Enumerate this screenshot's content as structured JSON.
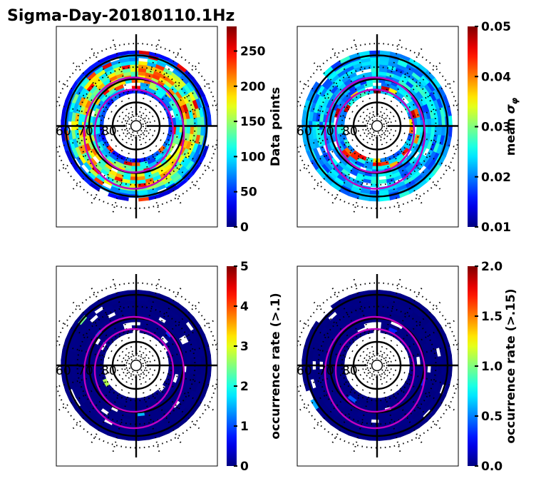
{
  "figure": {
    "title": "Sigma-Day-20180110.1Hz"
  },
  "chart_data": [
    {
      "type": "heatmap",
      "projection": "polar",
      "panel": "top-left",
      "title": "",
      "lat_labels": [
        "60",
        "70",
        "80"
      ],
      "colorbar": {
        "label": "Data points",
        "range": [
          0,
          285
        ],
        "ticks": [
          0,
          50,
          100,
          150,
          200,
          250
        ],
        "tick_labels": [
          "0",
          "50",
          "100",
          "150",
          "200",
          "250"
        ],
        "colormap": "jet"
      },
      "description": "Annular band of bins from ~60 to ~75 deg latitude; highest counts (150-250) in mid band, dawn/dusk sectors; low counts (0-50) at edges",
      "band": {
        "inner_lat": 75,
        "outer_lat": 58,
        "typical_value": 120,
        "max_value": 260
      },
      "oval_boundaries": [
        "poleward",
        "equatorward"
      ]
    },
    {
      "type": "heatmap",
      "projection": "polar",
      "panel": "top-right",
      "lat_labels": [
        "60",
        "70",
        "80"
      ],
      "colorbar": {
        "label": "mean σ_φ",
        "range": [
          0.01,
          0.05
        ],
        "ticks": [
          0.01,
          0.02,
          0.03,
          0.04,
          0.05
        ],
        "tick_labels": [
          "0.01",
          "0.02",
          "0.03",
          "0.04",
          "0.05"
        ],
        "colormap": "jet"
      },
      "description": "Mostly 0.015-0.025 throughout band; elevated values (0.035-0.05) near inner edge of band by the auroral oval",
      "band": {
        "inner_lat": 75,
        "outer_lat": 58,
        "typical_value": 0.021,
        "max_value": 0.05
      }
    },
    {
      "type": "heatmap",
      "projection": "polar",
      "panel": "bottom-left",
      "lat_labels": [
        "60",
        "70",
        "80"
      ],
      "colorbar": {
        "label": "occurrence rate (>.1)",
        "range": [
          0,
          5
        ],
        "ticks": [
          0,
          1,
          2,
          3,
          4,
          5
        ],
        "tick_labels": [
          "0",
          "1",
          "2",
          "3",
          "4",
          "5"
        ],
        "colormap": "jet"
      },
      "description": "Nearly all bins ~0; a few bins ~0.5-1 near noon and dusk; one bin ~2.5 on the dawn side",
      "band": {
        "inner_lat": 75,
        "outer_lat": 58,
        "typical_value": 0.05,
        "max_value": 2.8
      }
    },
    {
      "type": "heatmap",
      "projection": "polar",
      "panel": "bottom-right",
      "lat_labels": [
        "60",
        "70",
        "80"
      ],
      "colorbar": {
        "label": "occurrence rate (>.15)",
        "range": [
          0.0,
          2.0
        ],
        "ticks": [
          0.0,
          0.5,
          1.0,
          1.5,
          2.0
        ],
        "tick_labels": [
          "0.0",
          "0.5",
          "1.0",
          "1.5",
          "2.0"
        ],
        "colormap": "jet"
      },
      "description": "Nearly all bins ~0; a couple of bins ~0.3-0.7 on the dusk/pre-midnight side",
      "band": {
        "inner_lat": 75,
        "outer_lat": 58,
        "typical_value": 0.02,
        "max_value": 0.7
      }
    }
  ]
}
